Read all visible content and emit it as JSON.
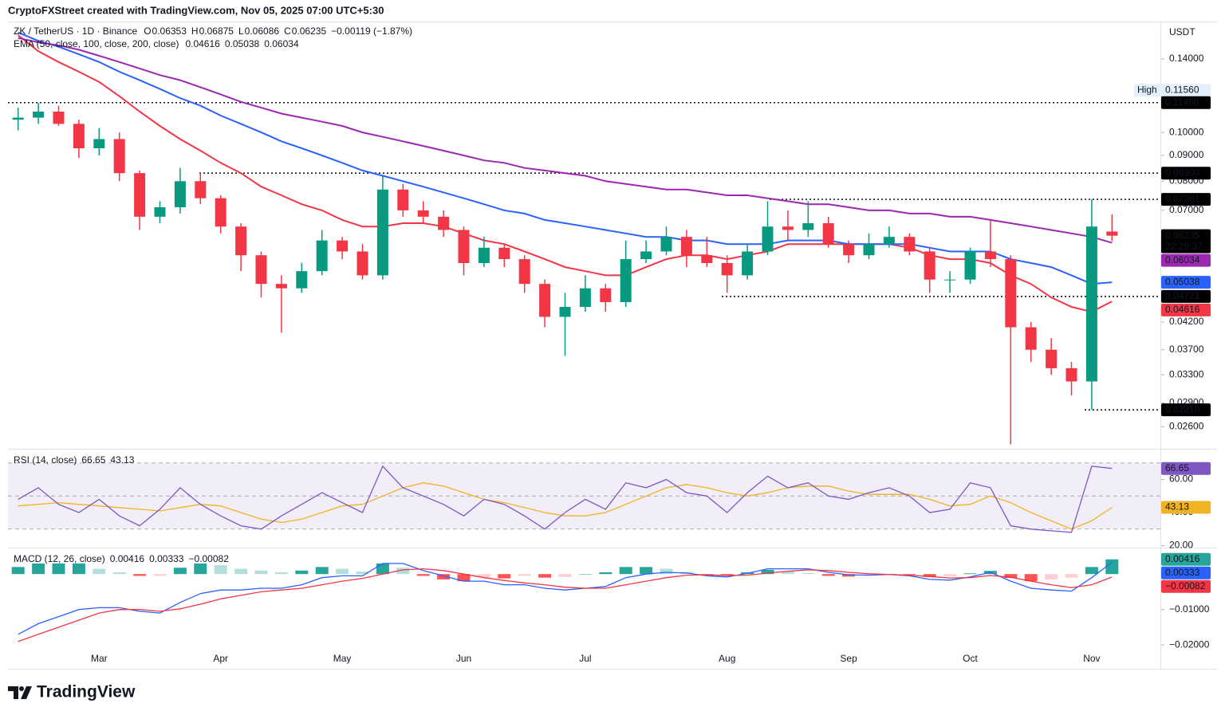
{
  "page": {
    "attribution": "CryptoFXStreet created with TradingView.com, Nov 05, 2025 07:00 UTC+5:30",
    "logo_text": "TradingView"
  },
  "chart_data": [
    {
      "type": "candlestick",
      "title": "ZK / TetherUS · 1D · Binance",
      "ohlc_labels": [
        "O",
        "H",
        "L",
        "C"
      ],
      "change": "−0.00119 (−1.87%)",
      "currency": "USDT",
      "countdown": "22:29:37",
      "up_color": "#089981",
      "down_color": "#f23645",
      "categories": [
        null,
        null,
        null,
        null,
        "Mar",
        null,
        null,
        null,
        null,
        null,
        "Apr",
        null,
        null,
        null,
        null,
        null,
        "May",
        null,
        null,
        null,
        null,
        null,
        "Jun",
        null,
        null,
        null,
        null,
        null,
        "Jul",
        null,
        null,
        null,
        null,
        null,
        null,
        "Aug",
        null,
        null,
        null,
        null,
        null,
        "Sep",
        null,
        null,
        null,
        null,
        null,
        "Oct",
        null,
        null,
        null,
        null,
        null,
        "Nov",
        null
      ],
      "open": [
        0.106,
        0.107,
        0.11,
        0.104,
        0.093,
        0.097,
        0.083,
        0.068,
        0.071,
        0.08,
        0.074,
        0.065,
        0.057,
        0.05,
        0.049,
        0.053,
        0.061,
        0.058,
        0.052,
        0.077,
        0.07,
        0.068,
        0.064,
        0.055,
        0.059,
        0.056,
        0.05,
        0.043,
        0.045,
        0.049,
        0.046,
        0.056,
        0.058,
        0.062,
        0.057,
        0.055,
        0.052,
        0.058,
        0.065,
        0.064,
        0.066,
        0.06,
        0.057,
        0.06,
        0.062,
        0.058,
        0.051,
        0.051,
        0.058,
        0.056,
        0.041,
        0.037,
        0.034,
        0.032,
        0.06353
      ],
      "high": [
        0.112,
        0.1146,
        0.113,
        0.106,
        0.102,
        0.1,
        0.084,
        0.073,
        0.085,
        0.083,
        0.075,
        0.066,
        0.058,
        0.052,
        0.055,
        0.064,
        0.062,
        0.06,
        0.082,
        0.079,
        0.073,
        0.07,
        0.065,
        0.062,
        0.06,
        0.057,
        0.051,
        0.048,
        0.052,
        0.05,
        0.061,
        0.061,
        0.065,
        0.064,
        0.062,
        0.057,
        0.06,
        0.073,
        0.07,
        0.073,
        0.068,
        0.061,
        0.063,
        0.065,
        0.063,
        0.059,
        0.053,
        0.059,
        0.067,
        0.057,
        0.042,
        0.039,
        0.035,
        0.07361,
        0.06875
      ],
      "low": [
        0.101,
        0.104,
        0.103,
        0.089,
        0.09,
        0.08,
        0.064,
        0.066,
        0.069,
        0.072,
        0.063,
        0.053,
        0.047,
        0.04,
        0.048,
        0.052,
        0.056,
        0.051,
        0.051,
        0.068,
        0.066,
        0.062,
        0.052,
        0.054,
        0.054,
        0.048,
        0.041,
        0.036,
        0.044,
        0.044,
        0.045,
        0.055,
        0.057,
        0.054,
        0.054,
        0.048,
        0.051,
        0.057,
        0.061,
        0.062,
        0.059,
        0.055,
        0.056,
        0.059,
        0.057,
        0.048,
        0.048,
        0.05,
        0.054,
        0.024,
        0.035,
        0.033,
        0.03,
        0.0281,
        0.06086
      ],
      "close": [
        0.107,
        0.11,
        0.104,
        0.093,
        0.097,
        0.083,
        0.068,
        0.071,
        0.08,
        0.074,
        0.065,
        0.057,
        0.05,
        0.049,
        0.053,
        0.061,
        0.058,
        0.052,
        0.077,
        0.07,
        0.068,
        0.064,
        0.055,
        0.059,
        0.056,
        0.05,
        0.043,
        0.045,
        0.049,
        0.046,
        0.056,
        0.058,
        0.062,
        0.057,
        0.055,
        0.052,
        0.058,
        0.065,
        0.064,
        0.066,
        0.06,
        0.057,
        0.06,
        0.062,
        0.058,
        0.051,
        0.051,
        0.058,
        0.056,
        0.041,
        0.037,
        0.034,
        0.032,
        0.065,
        0.06235
      ],
      "log_scale": true,
      "ylim": [
        0.0236,
        0.1655
      ],
      "yticks": [
        {
          "value": 0.14,
          "label": "0.14000"
        },
        {
          "value": 0.1,
          "label": "0.10000"
        },
        {
          "value": 0.09,
          "label": "0.09000"
        },
        {
          "value": 0.08,
          "label": "0.08000"
        },
        {
          "value": 0.07,
          "label": "0.07000"
        },
        {
          "value": 0.042,
          "label": "0.04200"
        },
        {
          "value": 0.037,
          "label": "0.03700"
        },
        {
          "value": 0.033,
          "label": "0.03300"
        },
        {
          "value": 0.029,
          "label": "0.02900"
        },
        {
          "value": 0.026,
          "label": "0.02600"
        }
      ],
      "levels": [
        {
          "value": 0.1146,
          "label": "0.11460"
        },
        {
          "value": 0.083,
          "label": "0.08300"
        },
        0.07361,
        0.04721,
        {
          "value": 0.0281,
          "label": "0.02810"
        }
      ],
      "high_marker": {
        "text": "High",
        "value": 0.1156,
        "label": "0.11560"
      },
      "indicator": {
        "title": "EMA (50, close, 100, close, 200, close)",
        "series": [
          {
            "color": "#f23645",
            "values": [
              0.156,
              0.145,
              0.138,
              0.132,
              0.126,
              0.118,
              0.11,
              0.103,
              0.097,
              0.092,
              0.087,
              0.083,
              0.078,
              0.075,
              0.072,
              0.07,
              0.067,
              0.065,
              0.065,
              0.066,
              0.066,
              0.065,
              0.063,
              0.061,
              0.06,
              0.058,
              0.056,
              0.054,
              0.053,
              0.052,
              0.052,
              0.054,
              0.056,
              0.057,
              0.057,
              0.056,
              0.057,
              0.058,
              0.06,
              0.06,
              0.06,
              0.06,
              0.06,
              0.06,
              0.059,
              0.057,
              0.056,
              0.056,
              0.055,
              0.052,
              0.05,
              0.047,
              0.045,
              0.044,
              0.04616
            ]
          },
          {
            "color": "#2962ff",
            "values": [
              0.158,
              0.152,
              0.148,
              0.143,
              0.138,
              0.132,
              0.127,
              0.122,
              0.117,
              0.113,
              0.108,
              0.104,
              0.1,
              0.096,
              0.093,
              0.09,
              0.087,
              0.084,
              0.082,
              0.08,
              0.078,
              0.076,
              0.074,
              0.072,
              0.07,
              0.069,
              0.067,
              0.066,
              0.065,
              0.064,
              0.063,
              0.062,
              0.062,
              0.061,
              0.061,
              0.06,
              0.06,
              0.06,
              0.061,
              0.061,
              0.061,
              0.06,
              0.06,
              0.06,
              0.06,
              0.059,
              0.058,
              0.058,
              0.058,
              0.056,
              0.055,
              0.054,
              0.052,
              0.05,
              0.05038
            ]
          },
          {
            "color": "#9c27b0",
            "values": [
              0.154,
              0.151,
              0.149,
              0.146,
              0.142,
              0.138,
              0.134,
              0.13,
              0.127,
              0.123,
              0.119,
              0.115,
              0.112,
              0.109,
              0.107,
              0.105,
              0.103,
              0.1,
              0.098,
              0.096,
              0.094,
              0.092,
              0.09,
              0.088,
              0.087,
              0.085,
              0.084,
              0.083,
              0.082,
              0.08,
              0.079,
              0.078,
              0.077,
              0.077,
              0.076,
              0.075,
              0.075,
              0.074,
              0.073,
              0.072,
              0.072,
              0.071,
              0.07,
              0.07,
              0.069,
              0.069,
              0.068,
              0.068,
              0.067,
              0.066,
              0.065,
              0.064,
              0.063,
              0.062,
              0.06034
            ]
          }
        ]
      }
    },
    {
      "type": "line",
      "title": "RSI (14, close)",
      "ylim": [
        19.3,
        77.6
      ],
      "yticks": [
        {
          "value": 60,
          "label": "60.00"
        },
        {
          "value": 40,
          "label": "40.00"
        },
        {
          "value": 20,
          "label": "20.00"
        }
      ],
      "bands": [
        70,
        50,
        30
      ],
      "band_fill": "#7e57c2",
      "series": [
        {
          "color": "#7e57c2",
          "values": [
            48,
            55,
            45,
            40,
            48,
            38,
            32,
            42,
            55,
            45,
            38,
            32,
            30,
            38,
            45,
            52,
            46,
            40,
            68,
            55,
            50,
            45,
            38,
            48,
            45,
            38,
            30,
            40,
            48,
            42,
            58,
            55,
            60,
            52,
            50,
            40,
            52,
            62,
            55,
            58,
            50,
            48,
            52,
            55,
            50,
            40,
            42,
            58,
            55,
            32,
            30,
            29,
            28,
            68,
            66.65
          ]
        },
        {
          "color": "#f0b323",
          "values": [
            44,
            45,
            46,
            45,
            44,
            43,
            42,
            41,
            43,
            45,
            44,
            40,
            36,
            34,
            36,
            40,
            44,
            45,
            50,
            55,
            58,
            56,
            52,
            48,
            46,
            43,
            40,
            38,
            38,
            40,
            45,
            50,
            55,
            57,
            55,
            52,
            50,
            52,
            55,
            56,
            56,
            53,
            51,
            51,
            51,
            48,
            44,
            45,
            50,
            46,
            40,
            35,
            30,
            35,
            43.13
          ]
        }
      ]
    },
    {
      "type": "macd",
      "title": "MACD (12, 26, close)",
      "ylim": [
        -0.0265,
        0.0068
      ],
      "yticks": [
        {
          "value": -0.01,
          "label": "−0.01000"
        },
        {
          "value": -0.02,
          "label": "−0.02000"
        }
      ],
      "histogram": {
        "colors": [
          "#26a69a",
          "#b2dfdb",
          "#ffcdd2",
          "#ff5252"
        ],
        "values": [
          0.002,
          0.003,
          0.003,
          0.003,
          0.0015,
          0.0005,
          -0.0005,
          -0.0005,
          0.0018,
          0.003,
          0.0025,
          0.0015,
          0.001,
          0.0005,
          0.001,
          0.002,
          0.0015,
          0.0007,
          0.003,
          0.0018,
          -0.0005,
          -0.0015,
          -0.002,
          -0.001,
          -0.0012,
          -0.0005,
          -0.001,
          -0.0008,
          0.0,
          0.0005,
          0.002,
          0.002,
          0.0015,
          0.0006,
          -0.0003,
          -0.0004,
          0.0005,
          0.0012,
          0.0007,
          0.0003,
          -0.0005,
          -0.0007,
          -0.0004,
          0.0,
          -0.0002,
          -0.0008,
          -0.0006,
          0.0002,
          0.0009,
          -0.0011,
          -0.002,
          -0.0015,
          -0.001,
          0.002,
          0.00416
        ]
      },
      "series": [
        {
          "color": "#2962ff",
          "values": [
            -0.017,
            -0.014,
            -0.012,
            -0.01,
            -0.0095,
            -0.0095,
            -0.0105,
            -0.011,
            -0.008,
            -0.0055,
            -0.0045,
            -0.0045,
            -0.004,
            -0.004,
            -0.003,
            -0.001,
            -0.0005,
            -0.0005,
            0.003,
            0.003,
            0.001,
            -0.0005,
            -0.002,
            -0.002,
            -0.003,
            -0.003,
            -0.004,
            -0.0045,
            -0.004,
            -0.0035,
            -0.001,
            0.0,
            0.0005,
            0.0003,
            -0.0005,
            -0.0008,
            0.0002,
            0.0015,
            0.0015,
            0.0015,
            0.0005,
            -0.0002,
            -0.0003,
            -0.0001,
            -0.0005,
            -0.0015,
            -0.0017,
            -0.0008,
            0.0005,
            -0.002,
            -0.004,
            -0.0045,
            -0.0048,
            -0.001,
            0.00333
          ]
        },
        {
          "color": "#f23645",
          "values": [
            -0.019,
            -0.017,
            -0.015,
            -0.013,
            -0.011,
            -0.01,
            -0.01,
            -0.0105,
            -0.0098,
            -0.0085,
            -0.007,
            -0.006,
            -0.005,
            -0.0045,
            -0.004,
            -0.003,
            -0.002,
            -0.0012,
            0.0,
            0.0012,
            0.0015,
            0.001,
            0.0,
            -0.001,
            -0.0018,
            -0.0025,
            -0.003,
            -0.0037,
            -0.004,
            -0.004,
            -0.003,
            -0.002,
            -0.001,
            -0.0003,
            -0.0002,
            -0.0004,
            -0.0003,
            0.0003,
            0.0008,
            0.0012,
            0.001,
            0.0005,
            0.0001,
            -0.0001,
            -0.0003,
            -0.0007,
            -0.0011,
            -0.001,
            -0.0004,
            -0.0009,
            -0.002,
            -0.003,
            -0.0038,
            -0.003,
            -0.00082
          ],
          "value_labels": [
            null,
            null,
            null,
            null,
            null,
            null,
            null,
            null,
            null,
            null,
            null,
            null,
            null,
            null,
            null,
            null,
            null,
            null,
            null,
            null,
            null,
            null,
            null,
            null,
            null,
            null,
            null,
            null,
            null,
            null,
            null,
            null,
            null,
            null,
            null,
            null,
            null,
            null,
            null,
            null,
            null,
            null,
            null,
            null,
            null,
            null,
            null,
            null,
            null,
            null,
            null,
            null,
            null,
            null,
            "−0.00082"
          ]
        }
      ]
    }
  ]
}
